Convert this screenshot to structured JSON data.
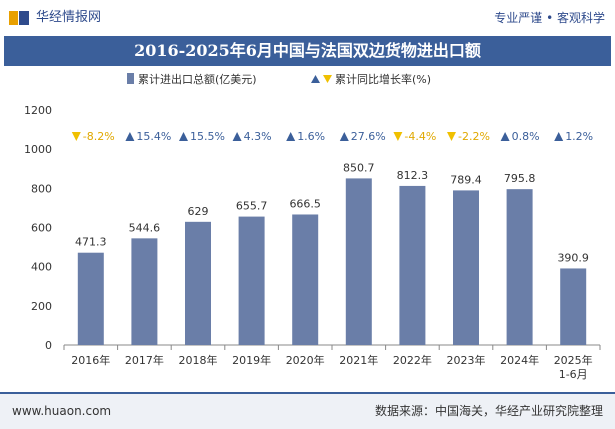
{
  "header": {
    "brand": "华经情报网",
    "tagline": "专业严谨 • 客观科学"
  },
  "colors": {
    "bar": "#6a7ea8",
    "up": "#3b5f9a",
    "down": "#f0c000",
    "title_bg": "#3b5f9a"
  },
  "chart_data": {
    "type": "bar",
    "title": "2016-2025年6月中国与法国双边货物进出口额",
    "legend_position": "top",
    "series": [
      {
        "name": "累计进出口总额(亿美元)",
        "values": [
          471.3,
          544.6,
          629,
          655.7,
          666.5,
          850.7,
          812.3,
          789.4,
          795.8,
          390.9
        ],
        "labels": [
          "471.3",
          "544.6",
          "629",
          "655.7",
          "666.5",
          "850.7",
          "812.3",
          "789.4",
          "795.8",
          "390.9"
        ]
      },
      {
        "name": "累计同比增长率(%)",
        "values": [
          -8.2,
          15.4,
          15.5,
          4.3,
          1.6,
          27.6,
          -4.4,
          -2.2,
          0.8,
          1.2
        ],
        "labels": [
          "-8.2%",
          "15.4%",
          "15.5%",
          "4.3%",
          "1.6%",
          "27.6%",
          "-4.4%",
          "-2.2%",
          "0.8%",
          "1.2%"
        ]
      }
    ],
    "categories": [
      [
        "2016年"
      ],
      [
        "2017年"
      ],
      [
        "2018年"
      ],
      [
        "2019年"
      ],
      [
        "2020年"
      ],
      [
        "2021年"
      ],
      [
        "2022年"
      ],
      [
        "2023年"
      ],
      [
        "2024年"
      ],
      [
        "2025年",
        "1-6月"
      ]
    ],
    "yticks": [
      "0",
      "200",
      "400",
      "600",
      "800",
      "1000",
      "1200"
    ],
    "ylim": [
      0,
      1200
    ]
  },
  "footer": {
    "website": "www.huaon.com",
    "source": "数据来源：中国海关，华经产业研究院整理"
  }
}
